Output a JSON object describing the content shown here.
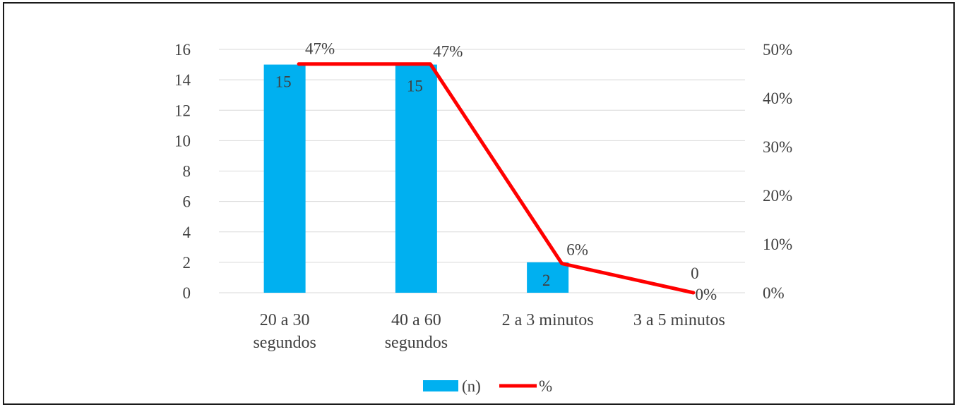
{
  "chart_data": {
    "type": "bar",
    "categories": [
      [
        "20 a 30",
        "segundos"
      ],
      [
        "40 a 60",
        "segundos"
      ],
      [
        "2 a 3 minutos"
      ],
      [
        "3 a 5 minutos"
      ]
    ],
    "series": [
      {
        "name": "(n)",
        "type": "bar",
        "axis": "left",
        "values": [
          15,
          15,
          2,
          0
        ],
        "labels": [
          "15",
          "15",
          "2",
          "0"
        ],
        "color": "#00B0F0"
      },
      {
        "name": "%",
        "type": "line",
        "axis": "right",
        "values": [
          47,
          47,
          6,
          0
        ],
        "labels": [
          "47%",
          "47%",
          "6%",
          "0%"
        ],
        "color": "#FF0000"
      }
    ],
    "y_left": {
      "min": 0,
      "max": 16,
      "ticks": [
        "0",
        "2",
        "4",
        "6",
        "8",
        "10",
        "12",
        "14",
        "16"
      ]
    },
    "y_right": {
      "min": 0,
      "max": 50,
      "ticks": [
        "0%",
        "10%",
        "20%",
        "30%",
        "40%",
        "50%"
      ]
    },
    "grid": true,
    "legend_position": "bottom"
  }
}
